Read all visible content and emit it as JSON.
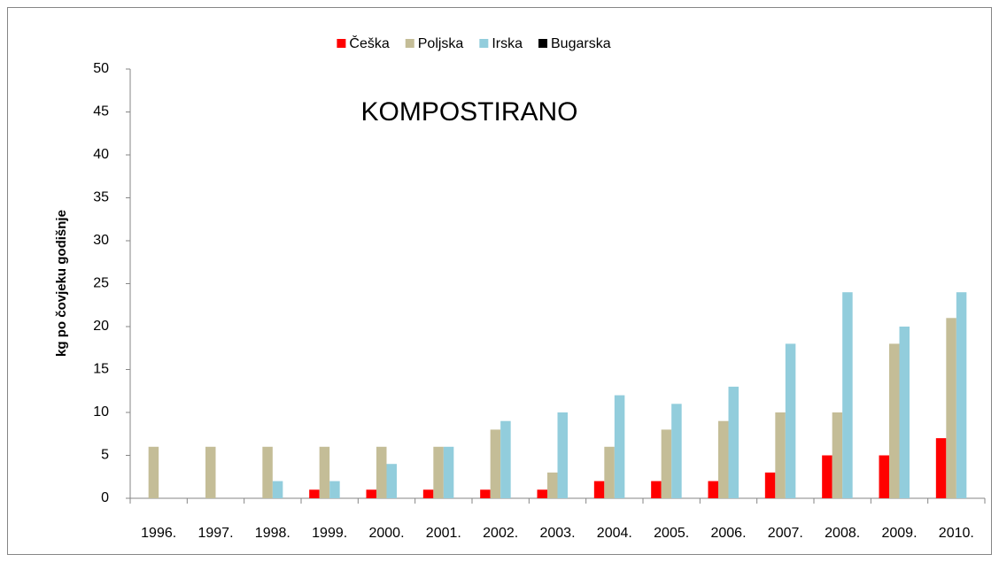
{
  "chart_data": {
    "type": "bar",
    "title": "KOMPOSTIRANO",
    "y_label": "kg po čovjeku  godišnje",
    "categories": [
      "1996.",
      "1997.",
      "1998.",
      "1999.",
      "2000.",
      "2001.",
      "2002.",
      "2003.",
      "2004.",
      "2005.",
      "2006.",
      "2007.",
      "2008.",
      "2009.",
      "2010."
    ],
    "series": [
      {
        "name": "Češka",
        "color": "#ff0000",
        "values": [
          0,
          0,
          0,
          1,
          1,
          1,
          1,
          1,
          2,
          2,
          2,
          3,
          5,
          5,
          7
        ]
      },
      {
        "name": "Poljska",
        "color": "#c4bd97",
        "values": [
          6,
          6,
          6,
          6,
          6,
          6,
          8,
          3,
          6,
          8,
          9,
          10,
          10,
          18,
          21
        ]
      },
      {
        "name": "Irska",
        "color": "#92cddc",
        "values": [
          0,
          0,
          2,
          2,
          4,
          6,
          9,
          10,
          12,
          11,
          13,
          18,
          24,
          20,
          24
        ]
      },
      {
        "name": "Bugarska",
        "color": "#000000",
        "values": [
          0,
          0,
          0,
          0,
          0,
          0,
          0,
          0,
          0,
          0,
          0,
          0,
          0,
          0,
          0
        ]
      }
    ],
    "ylim": [
      0,
      50
    ],
    "yticks": [
      0,
      5,
      10,
      15,
      20,
      25,
      30,
      35,
      40,
      45,
      50
    ],
    "grid": false,
    "legend": "top"
  }
}
